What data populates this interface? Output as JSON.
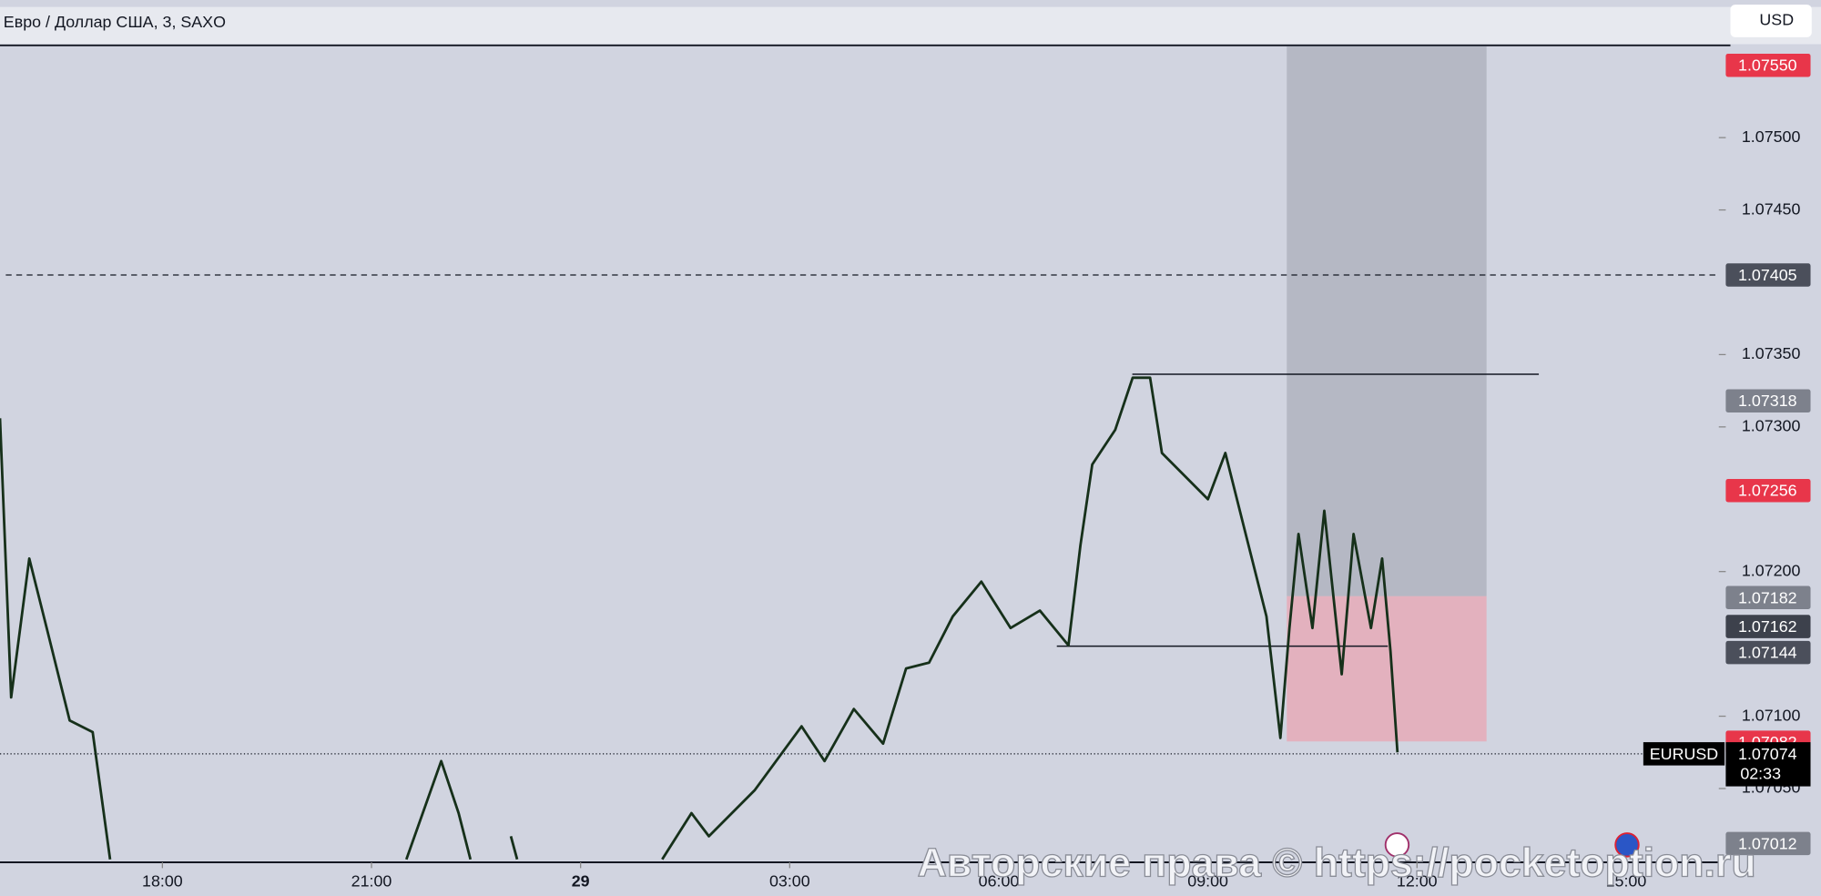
{
  "header": {
    "title": "Евро / Доллар США, 3, SAXO",
    "currency": "USD"
  },
  "chart_data": {
    "type": "line",
    "x": [
      15.67,
      15.83,
      16.09,
      16.34,
      16.67,
      17.0,
      17.25,
      19,
      21.5,
      22.0,
      22.25,
      22.42,
      22.7,
      23.0,
      23.09,
      24.5,
      25.17,
      25.59,
      25.84,
      26.5,
      27.17,
      27.5,
      27.92,
      28.34,
      28.67,
      29.0,
      29.34,
      29.75,
      30.17,
      30.59,
      31.0,
      31.17,
      31.34,
      31.67,
      31.92,
      32.17,
      32.34,
      32.67,
      33.0,
      33.25,
      33.5,
      33.84,
      34.04,
      34.17,
      34.3,
      34.5,
      34.67,
      34.92,
      35.09,
      35.34,
      35.5,
      35.62,
      35.72
    ],
    "values": [
      1.07306,
      1.07113,
      1.07209,
      1.07161,
      1.07097,
      1.07089,
      1.07001,
      null,
      1.07001,
      1.07069,
      1.07033,
      1.07001,
      null,
      1.07017,
      1.07001,
      null,
      1.07001,
      1.07033,
      1.07017,
      1.07049,
      1.07093,
      1.07069,
      1.07105,
      1.07081,
      1.07133,
      1.07137,
      1.07169,
      1.07193,
      1.07161,
      1.07173,
      1.07149,
      1.07218,
      1.07274,
      1.07298,
      1.07334,
      1.07334,
      1.07282,
      1.07266,
      1.0725,
      1.07282,
      1.07234,
      1.07169,
      1.07085,
      1.07161,
      1.07226,
      1.07161,
      1.07242,
      1.07129,
      1.07226,
      1.07161,
      1.07209,
      1.07145,
      1.07075
    ],
    "color": "#16301a",
    "xlim": [
      15.67,
      40.33
    ],
    "ylim": [
      1.06999,
      1.07563
    ],
    "xticks": [
      {
        "value": 18,
        "label": "18:00"
      },
      {
        "value": 21,
        "label": "21:00"
      },
      {
        "value": 24,
        "label": "29"
      },
      {
        "value": 27,
        "label": "03:00"
      },
      {
        "value": 30,
        "label": "06:00"
      },
      {
        "value": 33,
        "label": "09:00"
      },
      {
        "value": 36,
        "label": "12:00"
      },
      {
        "value": 39,
        "label": "15:00"
      }
    ],
    "yticks": [
      {
        "value": 1.075,
        "label": "1.07500"
      },
      {
        "value": 1.0745,
        "label": "1.07450"
      },
      {
        "value": 1.0735,
        "label": "1.07350"
      },
      {
        "value": 1.073,
        "label": "1.07300"
      },
      {
        "value": 1.072,
        "label": "1.07200"
      },
      {
        "value": 1.071,
        "label": "1.07100"
      },
      {
        "value": 1.0705,
        "label": "1.07050"
      }
    ],
    "price_tags": [
      {
        "value": 1.0755,
        "label": "1.07550",
        "color": "#e8364a"
      },
      {
        "value": 1.07405,
        "label": "1.07405",
        "color": "#4b4f5b"
      },
      {
        "value": 1.07318,
        "label": "1.07318",
        "color": "#7d818c"
      },
      {
        "value": 1.07256,
        "label": "1.07256",
        "color": "#e8364a"
      },
      {
        "value": 1.07182,
        "label": "1.07182",
        "color": "#7d818c"
      },
      {
        "value": 1.07162,
        "label": "1.07162",
        "color": "#3d414c"
      },
      {
        "value": 1.07144,
        "label": "1.07144",
        "color": "#4b4f5b"
      },
      {
        "value": 1.07082,
        "label": "1.07082",
        "color": "#e8364a"
      },
      {
        "value": 1.07012,
        "label": "1.07012",
        "color": "#7d818c"
      }
    ],
    "current": {
      "symbol": "EURUSD",
      "value": 1.07074,
      "label": "1.07074",
      "countdown": "02:33"
    }
  },
  "watermark": "Авторские права © https://pocketoption.ru"
}
